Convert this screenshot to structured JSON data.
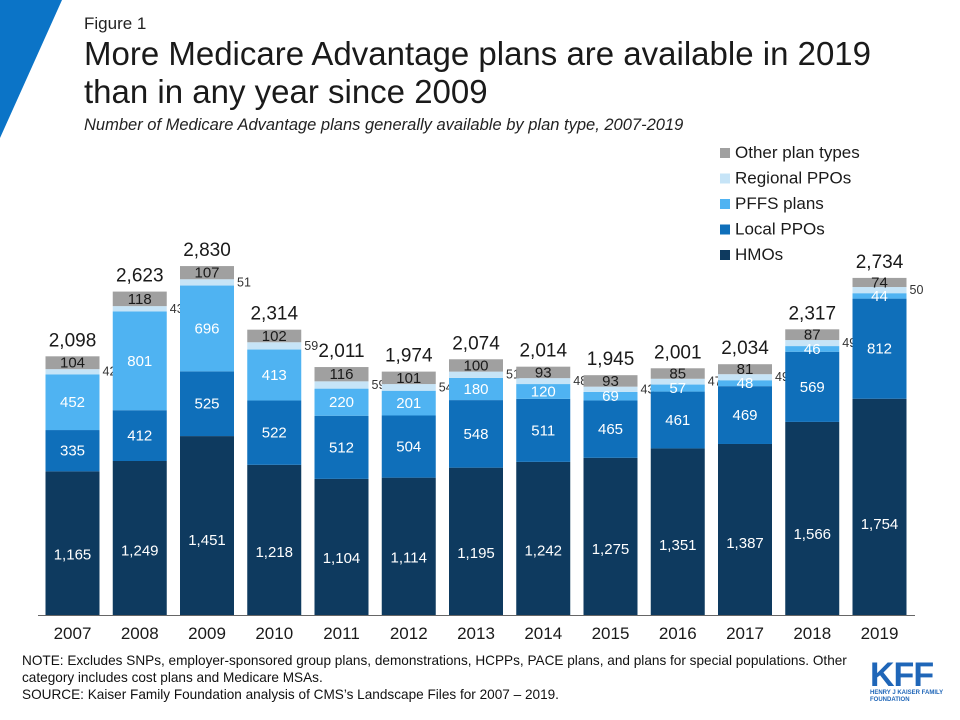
{
  "figure_label": "Figure 1",
  "title": "More Medicare Advantage plans are available in 2019 than in any year since 2009",
  "subtitle": "Number of Medicare Advantage plans generally available by plan type, 2007-2019",
  "notes": {
    "note": "NOTE: Excludes SNPs, employer-sponsored group plans, demonstrations, HCPPs, PACE plans, and plans for special populations.  Other category includes cost plans and Medicare MSAs.",
    "source": "SOURCE: Kaiser Family Foundation analysis of CMS’s Landscape Files for 2007 – 2019."
  },
  "logo": {
    "text": "KFF",
    "subtext": "HENRY J KAISER FAMILY FOUNDATION"
  },
  "colors": {
    "hmo": "#0e3a5f",
    "local_ppo": "#0f6fba",
    "pffs": "#4fb3f2",
    "regional_ppo": "#c6e4f7",
    "other": "#a0a0a0",
    "accent": "#0b74c7"
  },
  "chart_data": {
    "type": "bar",
    "stacked": true,
    "title": "More Medicare Advantage plans are available in 2019 than in any year since 2009",
    "subtitle": "Number of Medicare Advantage plans generally available by plan type, 2007-2019",
    "categories": [
      "2007",
      "2008",
      "2009",
      "2010",
      "2011",
      "2012",
      "2013",
      "2014",
      "2015",
      "2016",
      "2017",
      "2018",
      "2019"
    ],
    "series": [
      {
        "name": "HMOs",
        "color": "#0e3a5f",
        "values": [
          1165,
          1249,
          1451,
          1218,
          1104,
          1114,
          1195,
          1242,
          1275,
          1351,
          1387,
          1566,
          1754
        ],
        "labels": [
          "1,165",
          "1,249",
          "1,451",
          "1,218",
          "1,104",
          "1,114",
          "1,195",
          "1,242",
          "1,275",
          "1,351",
          "1,387",
          "1,566",
          "1,754"
        ]
      },
      {
        "name": "Local PPOs",
        "color": "#0f6fba",
        "values": [
          335,
          412,
          525,
          522,
          512,
          504,
          548,
          511,
          465,
          461,
          469,
          569,
          812
        ],
        "labels": [
          "335",
          "412",
          "525",
          "522",
          "512",
          "504",
          "548",
          "511",
          "465",
          "461",
          "469",
          "569",
          "812"
        ]
      },
      {
        "name": "PFFS plans",
        "color": "#4fb3f2",
        "values": [
          452,
          801,
          696,
          413,
          220,
          201,
          180,
          120,
          69,
          57,
          48,
          46,
          44
        ],
        "labels": [
          "452",
          "801",
          "696",
          "413",
          "220",
          "201",
          "180",
          "120",
          "69",
          "57",
          "48",
          "46",
          "44"
        ]
      },
      {
        "name": "Regional PPOs",
        "color": "#c6e4f7",
        "values": [
          42,
          43,
          51,
          59,
          59,
          54,
          51,
          48,
          43,
          47,
          49,
          49,
          50
        ],
        "labels": [
          "42",
          "43",
          "51",
          "59",
          "59",
          "54",
          "51",
          "48",
          "43",
          "47",
          "49",
          "49",
          "50"
        ]
      },
      {
        "name": "Other plan types",
        "color": "#a0a0a0",
        "values": [
          104,
          118,
          107,
          102,
          116,
          101,
          100,
          93,
          93,
          85,
          81,
          87,
          74
        ],
        "labels": [
          "104",
          "118",
          "107",
          "102",
          "116",
          "101",
          "100",
          "93",
          "93",
          "85",
          "81",
          "87",
          "74"
        ]
      }
    ],
    "totals": [
      2098,
      2623,
      2830,
      2314,
      2011,
      1974,
      2074,
      2014,
      1945,
      2001,
      2034,
      2317,
      2734
    ],
    "total_labels": [
      "2,098",
      "2,623",
      "2,830",
      "2,314",
      "2,011",
      "1,974",
      "2,074",
      "2,014",
      "1,945",
      "2,001",
      "2,034",
      "2,317",
      "2,734"
    ],
    "ylim": [
      0,
      3000
    ],
    "legend_position": "top-right",
    "legend_order": [
      "Other plan types",
      "Regional PPOs",
      "PFFS plans",
      "Local PPOs",
      "HMOs"
    ],
    "grid": false
  }
}
